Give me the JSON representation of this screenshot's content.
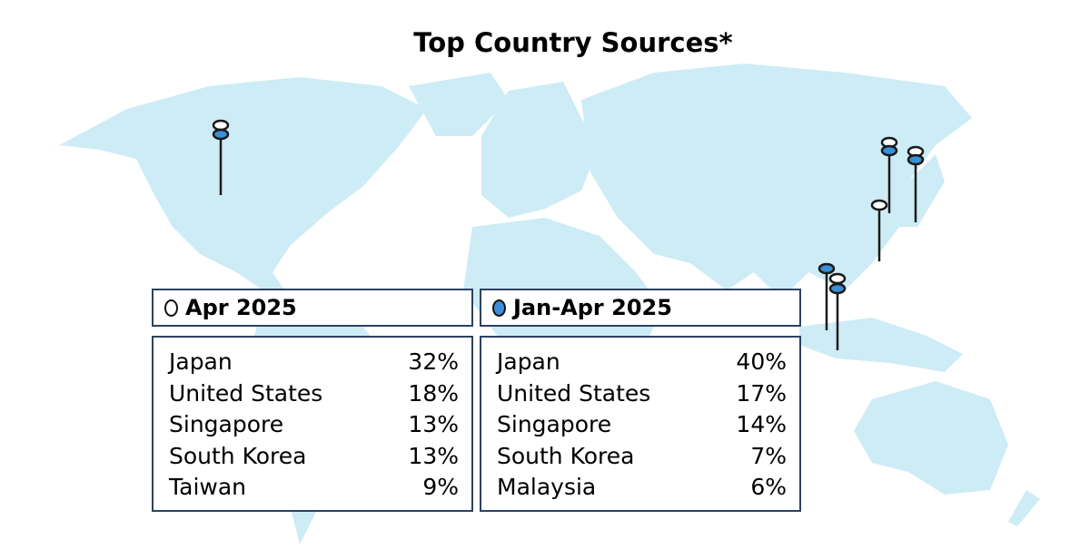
{
  "title": "Top Country Sources*",
  "colors": {
    "land": "#cdecf5",
    "pin_current": "#ffffff",
    "pin_ytd": "#3a8fd6",
    "border": "#2c4260"
  },
  "panels": [
    {
      "label": "Apr 2025",
      "marker": "hollow-circle",
      "rows": [
        {
          "country": "Japan",
          "share": "32%"
        },
        {
          "country": "United States",
          "share": "18%"
        },
        {
          "country": "Singapore",
          "share": "13%"
        },
        {
          "country": "South Korea",
          "share": "13%"
        },
        {
          "country": "Taiwan",
          "share": "9%"
        }
      ]
    },
    {
      "label": "Jan-Apr 2025",
      "marker": "blue-circle",
      "rows": [
        {
          "country": "Japan",
          "share": "40%"
        },
        {
          "country": "United States",
          "share": "17%"
        },
        {
          "country": "Singapore",
          "share": "14%"
        },
        {
          "country": "South Korea",
          "share": "7%"
        },
        {
          "country": "Malaysia",
          "share": "6%"
        }
      ]
    }
  ]
}
